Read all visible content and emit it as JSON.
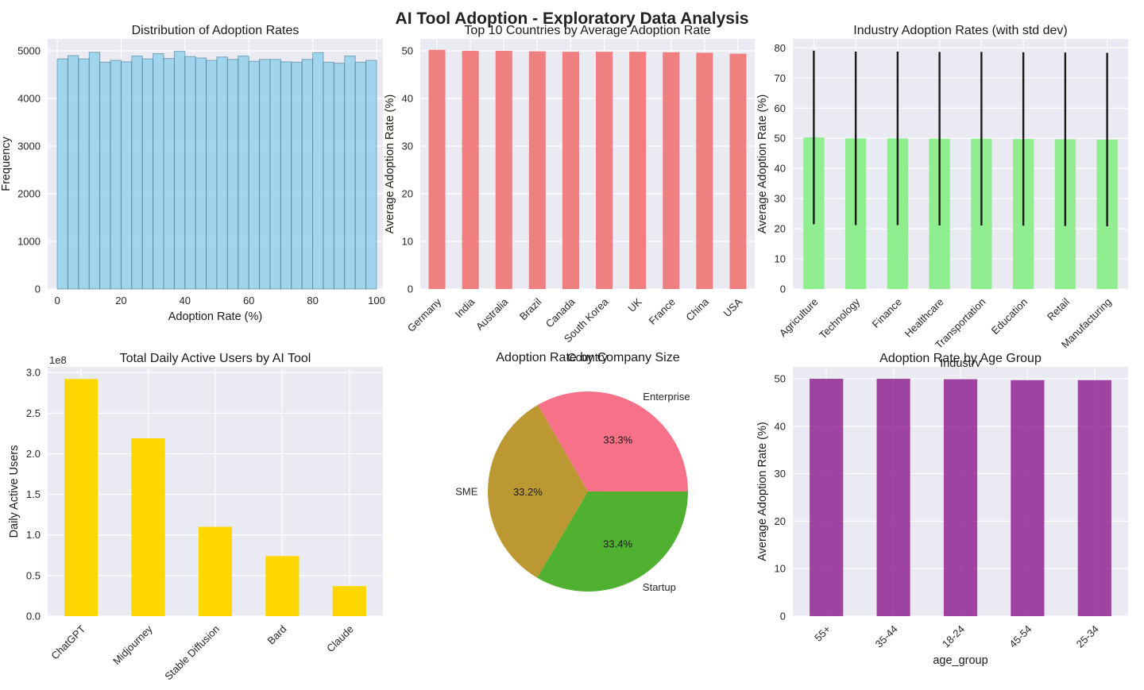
{
  "figure": {
    "suptitle": "AI Tool Adoption - Exploratory Data Analysis"
  },
  "colors": {
    "panel_bg": "#eaeaf2",
    "grid": "#ffffff",
    "hist": "#87ceeb",
    "hist_edge": "#3a6f86",
    "countries": "#f08080",
    "industry": "#90ee90",
    "errbar": "#1a1a1a",
    "users": "#ffd700",
    "age": "#8b1a8b",
    "pie": [
      "#f77189",
      "#bb9832",
      "#50b131"
    ]
  },
  "chart_data": [
    {
      "id": "hist",
      "type": "bar",
      "subtype": "histogram",
      "title": "Distribution of Adoption Rates",
      "xlabel": "Adoption Rate (%)",
      "ylabel": "Frequency",
      "xlim": [
        -3,
        102
      ],
      "ylim": [
        0,
        5250
      ],
      "xticks": [
        0,
        20,
        40,
        60,
        80,
        100
      ],
      "yticks": [
        0,
        1000,
        2000,
        3000,
        4000,
        5000
      ],
      "bin_start": 0,
      "bin_width": 3.3333,
      "values": [
        4830,
        4900,
        4830,
        4970,
        4760,
        4800,
        4770,
        4890,
        4830,
        4940,
        4840,
        4990,
        4880,
        4850,
        4800,
        4870,
        4820,
        4890,
        4780,
        4820,
        4820,
        4770,
        4760,
        4820,
        4960,
        4760,
        4740,
        4890,
        4760,
        4800
      ],
      "grid": true
    },
    {
      "id": "countries",
      "type": "bar",
      "title": "Top 10 Countries by Average Adoption Rate",
      "xlabel": "Country",
      "ylabel": "Average Adoption Rate (%)",
      "ylim": [
        0,
        52.5
      ],
      "yticks": [
        0,
        10,
        20,
        30,
        40,
        50
      ],
      "categories": [
        "Germany",
        "India",
        "Australia",
        "Brazil",
        "Canada",
        "South Korea",
        "UK",
        "France",
        "China",
        "USA"
      ],
      "values": [
        50.2,
        50.0,
        50.0,
        49.9,
        49.8,
        49.8,
        49.8,
        49.7,
        49.6,
        49.4
      ],
      "grid": true
    },
    {
      "id": "industry",
      "type": "bar",
      "title": "Industry Adoption Rates (with std dev)",
      "xlabel": "Industry",
      "ylabel": "Average Adoption Rate (%)",
      "ylim": [
        0,
        83
      ],
      "yticks": [
        0,
        10,
        20,
        30,
        40,
        50,
        60,
        70,
        80
      ],
      "categories": [
        "Agriculture",
        "Technology",
        "Finance",
        "Healthcare",
        "Transportation",
        "Education",
        "Retail",
        "Manufacturing"
      ],
      "values": [
        50.3,
        50.0,
        50.0,
        49.9,
        49.9,
        49.8,
        49.7,
        49.6
      ],
      "std": [
        28.8,
        28.8,
        28.8,
        28.8,
        28.8,
        28.8,
        28.8,
        28.8
      ],
      "grid": true
    },
    {
      "id": "users",
      "type": "bar",
      "title": "Total Daily Active Users by AI Tool",
      "xlabel": "",
      "ylabel": "Daily Active Users",
      "offset_label": "1e8",
      "ylim": [
        0,
        3.07
      ],
      "yticks": [
        0.0,
        0.5,
        1.0,
        1.5,
        2.0,
        2.5,
        3.0
      ],
      "categories": [
        "ChatGPT",
        "Midjourney",
        "Stable Diffusion",
        "Bard",
        "Claude"
      ],
      "values": [
        2.92,
        2.19,
        1.1,
        0.74,
        0.37
      ],
      "grid": true
    },
    {
      "id": "pie",
      "type": "pie",
      "title": "Adoption Rate by Company Size",
      "labels": [
        "Enterprise",
        "SME",
        "Startup"
      ],
      "values": [
        33.3,
        33.2,
        33.4
      ],
      "pct_labels": [
        "33.3%",
        "33.2%",
        "33.4%"
      ]
    },
    {
      "id": "age",
      "type": "bar",
      "title": "Adoption Rate by Age Group",
      "xlabel": "age_group",
      "ylabel": "Average Adoption Rate (%)",
      "ylim": [
        0,
        52.5
      ],
      "yticks": [
        0,
        10,
        20,
        30,
        40,
        50
      ],
      "categories": [
        "55+",
        "35-44",
        "18-24",
        "45-54",
        "25-34"
      ],
      "values": [
        50.0,
        50.0,
        49.9,
        49.7,
        49.7
      ],
      "grid": true
    }
  ]
}
